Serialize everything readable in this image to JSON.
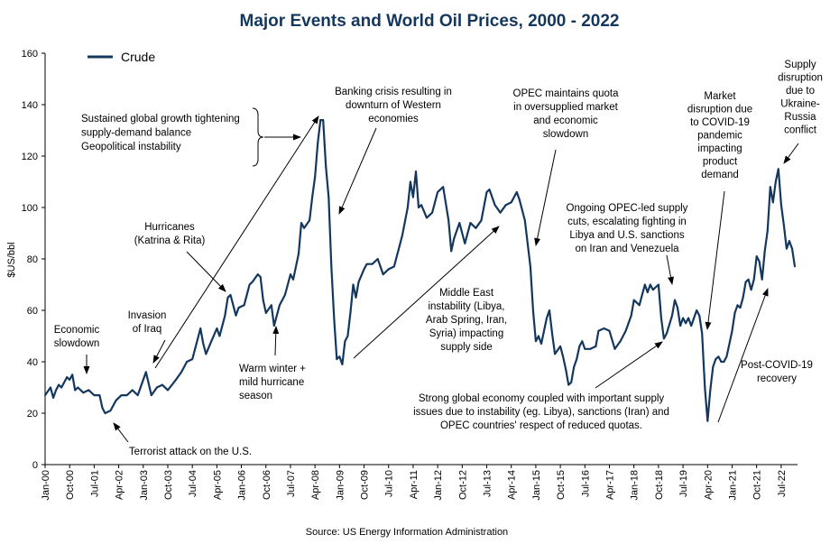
{
  "chart_data": {
    "type": "line",
    "title": "Major Events and World Oil Prices, 2000 - 2022",
    "ylabel": "$US/bbl",
    "xlabel": "",
    "ylim": [
      0,
      160
    ],
    "yticks": [
      "0",
      "20",
      "40",
      "60",
      "80",
      "100",
      "120",
      "140",
      "160"
    ],
    "grid": false,
    "legend_position": "top-left",
    "series_color": "#14375e",
    "source": "Source: US Energy Information Administration",
    "xtick_labels": [
      "Jan-00",
      "Oct-00",
      "Jul-01",
      "Apr-02",
      "Jan-03",
      "Oct-03",
      "Jul-04",
      "Apr-05",
      "Jan-06",
      "Oct-06",
      "Jul-07",
      "Apr-08",
      "Jan-09",
      "Oct-09",
      "Jul-10",
      "Apr-11",
      "Jan-12",
      "Oct-12",
      "Jul-13",
      "Apr-14",
      "Jan-15",
      "Oct-15",
      "Jul-16",
      "Apr-17",
      "Jan-18",
      "Oct-18",
      "Jul-19",
      "Apr-20",
      "Jan-21",
      "Oct-21",
      "Jul-22"
    ],
    "series": [
      {
        "name": "Crude",
        "points": [
          [
            "2000-01",
            27
          ],
          [
            "2000-03",
            30
          ],
          [
            "2000-04",
            26
          ],
          [
            "2000-05",
            29
          ],
          [
            "2000-06",
            31
          ],
          [
            "2000-07",
            30
          ],
          [
            "2000-09",
            34
          ],
          [
            "2000-10",
            33
          ],
          [
            "2000-11",
            35
          ],
          [
            "2000-12",
            29
          ],
          [
            "2001-01",
            30
          ],
          [
            "2001-03",
            28
          ],
          [
            "2001-05",
            29
          ],
          [
            "2001-07",
            27
          ],
          [
            "2001-09",
            27
          ],
          [
            "2001-10",
            22
          ],
          [
            "2001-11",
            20
          ],
          [
            "2002-01",
            21
          ],
          [
            "2002-03",
            25
          ],
          [
            "2002-05",
            27
          ],
          [
            "2002-07",
            27
          ],
          [
            "2002-09",
            29
          ],
          [
            "2002-11",
            27
          ],
          [
            "2003-01",
            33
          ],
          [
            "2003-02",
            36
          ],
          [
            "2003-04",
            27
          ],
          [
            "2003-06",
            30
          ],
          [
            "2003-08",
            31
          ],
          [
            "2003-10",
            29
          ],
          [
            "2004-01",
            33
          ],
          [
            "2004-03",
            36
          ],
          [
            "2004-05",
            40
          ],
          [
            "2004-07",
            41
          ],
          [
            "2004-08",
            45
          ],
          [
            "2004-10",
            53
          ],
          [
            "2004-11",
            47
          ],
          [
            "2004-12",
            43
          ],
          [
            "2005-02",
            48
          ],
          [
            "2005-04",
            53
          ],
          [
            "2005-05",
            50
          ],
          [
            "2005-07",
            58
          ],
          [
            "2005-08",
            65
          ],
          [
            "2005-09",
            66
          ],
          [
            "2005-11",
            58
          ],
          [
            "2005-12",
            61
          ],
          [
            "2006-02",
            62
          ],
          [
            "2006-04",
            70
          ],
          [
            "2006-05",
            71
          ],
          [
            "2006-07",
            74
          ],
          [
            "2006-08",
            73
          ],
          [
            "2006-09",
            64
          ],
          [
            "2006-10",
            59
          ],
          [
            "2006-12",
            62
          ],
          [
            "2007-01",
            54
          ],
          [
            "2007-03",
            62
          ],
          [
            "2007-05",
            66
          ],
          [
            "2007-07",
            74
          ],
          [
            "2007-08",
            72
          ],
          [
            "2007-10",
            82
          ],
          [
            "2007-11",
            94
          ],
          [
            "2007-12",
            92
          ],
          [
            "2008-02",
            95
          ],
          [
            "2008-03",
            104
          ],
          [
            "2008-04",
            112
          ],
          [
            "2008-05",
            125
          ],
          [
            "2008-06",
            134
          ],
          [
            "2008-07",
            134
          ],
          [
            "2008-08",
            116
          ],
          [
            "2008-09",
            104
          ],
          [
            "2008-10",
            77
          ],
          [
            "2008-11",
            57
          ],
          [
            "2008-12",
            41
          ],
          [
            "2009-01",
            42
          ],
          [
            "2009-02",
            39
          ],
          [
            "2009-03",
            48
          ],
          [
            "2009-04",
            50
          ],
          [
            "2009-05",
            59
          ],
          [
            "2009-06",
            70
          ],
          [
            "2009-07",
            65
          ],
          [
            "2009-08",
            71
          ],
          [
            "2009-10",
            76
          ],
          [
            "2009-11",
            78
          ],
          [
            "2010-01",
            78
          ],
          [
            "2010-03",
            80
          ],
          [
            "2010-05",
            74
          ],
          [
            "2010-07",
            76
          ],
          [
            "2010-09",
            77
          ],
          [
            "2010-11",
            85
          ],
          [
            "2010-12",
            89
          ],
          [
            "2011-02",
            100
          ],
          [
            "2011-03",
            110
          ],
          [
            "2011-04",
            104
          ],
          [
            "2011-05",
            114
          ],
          [
            "2011-06",
            100
          ],
          [
            "2011-07",
            101
          ],
          [
            "2011-09",
            96
          ],
          [
            "2011-11",
            98
          ],
          [
            "2012-01",
            106
          ],
          [
            "2012-03",
            108
          ],
          [
            "2012-05",
            95
          ],
          [
            "2012-06",
            83
          ],
          [
            "2012-07",
            88
          ],
          [
            "2012-09",
            94
          ],
          [
            "2012-11",
            86
          ],
          [
            "2013-01",
            94
          ],
          [
            "2013-03",
            92
          ],
          [
            "2013-05",
            95
          ],
          [
            "2013-07",
            106
          ],
          [
            "2013-08",
            107
          ],
          [
            "2013-10",
            101
          ],
          [
            "2013-12",
            98
          ],
          [
            "2014-02",
            101
          ],
          [
            "2014-04",
            102
          ],
          [
            "2014-06",
            106
          ],
          [
            "2014-07",
            103
          ],
          [
            "2014-09",
            95
          ],
          [
            "2014-11",
            77
          ],
          [
            "2014-12",
            60
          ],
          [
            "2015-01",
            48
          ],
          [
            "2015-02",
            50
          ],
          [
            "2015-03",
            47
          ],
          [
            "2015-05",
            57
          ],
          [
            "2015-06",
            60
          ],
          [
            "2015-07",
            51
          ],
          [
            "2015-08",
            43
          ],
          [
            "2015-10",
            46
          ],
          [
            "2015-11",
            42
          ],
          [
            "2015-12",
            37
          ],
          [
            "2016-01",
            31
          ],
          [
            "2016-02",
            32
          ],
          [
            "2016-03",
            38
          ],
          [
            "2016-04",
            41
          ],
          [
            "2016-05",
            46
          ],
          [
            "2016-06",
            48
          ],
          [
            "2016-07",
            45
          ],
          [
            "2016-09",
            45
          ],
          [
            "2016-11",
            46
          ],
          [
            "2016-12",
            52
          ],
          [
            "2017-02",
            53
          ],
          [
            "2017-04",
            52
          ],
          [
            "2017-06",
            45
          ],
          [
            "2017-08",
            48
          ],
          [
            "2017-10",
            52
          ],
          [
            "2017-12",
            58
          ],
          [
            "2018-01",
            64
          ],
          [
            "2018-03",
            62
          ],
          [
            "2018-05",
            70
          ],
          [
            "2018-06",
            67
          ],
          [
            "2018-07",
            70
          ],
          [
            "2018-08",
            68
          ],
          [
            "2018-10",
            70
          ],
          [
            "2018-11",
            57
          ],
          [
            "2018-12",
            49
          ],
          [
            "2019-01",
            51
          ],
          [
            "2019-03",
            58
          ],
          [
            "2019-04",
            64
          ],
          [
            "2019-05",
            61
          ],
          [
            "2019-06",
            54
          ],
          [
            "2019-07",
            57
          ],
          [
            "2019-08",
            55
          ],
          [
            "2019-09",
            57
          ],
          [
            "2019-10",
            54
          ],
          [
            "2019-11",
            57
          ],
          [
            "2019-12",
            60
          ],
          [
            "2020-01",
            58
          ],
          [
            "2020-02",
            51
          ],
          [
            "2020-03",
            30
          ],
          [
            "2020-04",
            17
          ],
          [
            "2020-05",
            29
          ],
          [
            "2020-06",
            38
          ],
          [
            "2020-07",
            41
          ],
          [
            "2020-08",
            42
          ],
          [
            "2020-09",
            40
          ],
          [
            "2020-10",
            40
          ],
          [
            "2020-11",
            42
          ],
          [
            "2020-12",
            47
          ],
          [
            "2021-01",
            52
          ],
          [
            "2021-02",
            59
          ],
          [
            "2021-03",
            62
          ],
          [
            "2021-04",
            61
          ],
          [
            "2021-05",
            65
          ],
          [
            "2021-06",
            71
          ],
          [
            "2021-07",
            72
          ],
          [
            "2021-08",
            68
          ],
          [
            "2021-09",
            72
          ],
          [
            "2021-10",
            81
          ],
          [
            "2021-11",
            79
          ],
          [
            "2021-12",
            72
          ],
          [
            "2022-01",
            83
          ],
          [
            "2022-02",
            91
          ],
          [
            "2022-03",
            108
          ],
          [
            "2022-04",
            102
          ],
          [
            "2022-05",
            110
          ],
          [
            "2022-06",
            115
          ],
          [
            "2022-07",
            101
          ],
          [
            "2022-08",
            93
          ],
          [
            "2022-09",
            84
          ],
          [
            "2022-10",
            87
          ],
          [
            "2022-11",
            84
          ],
          [
            "2022-12",
            77
          ]
        ]
      }
    ],
    "annotations": [
      {
        "id": "economic-slowdown",
        "lines": [
          "Economic",
          "slowdown"
        ]
      },
      {
        "id": "terrorist-attack",
        "lines": [
          "Terrorist attack on the U.S."
        ]
      },
      {
        "id": "invasion-iraq",
        "lines": [
          "Invasion",
          "of Iraq"
        ]
      },
      {
        "id": "hurricanes",
        "lines": [
          "Hurricanes",
          "(Katrina & Rita)"
        ]
      },
      {
        "id": "global-growth",
        "lines": [
          "Sustained global growth tightening",
          "supply-demand balance",
          "Geopolitical instability"
        ]
      },
      {
        "id": "warm-winter",
        "lines": [
          "Warm winter +",
          "mild hurricane",
          "season"
        ]
      },
      {
        "id": "banking-crisis",
        "lines": [
          "Banking crisis resulting in",
          "downturn of Western",
          "economies"
        ]
      },
      {
        "id": "middle-east",
        "lines": [
          "Middle East",
          "instability (Libya,",
          "Arab Spring, Iran,",
          "Syria) impacting",
          "supply side"
        ]
      },
      {
        "id": "opec-quota",
        "lines": [
          "OPEC maintains quota",
          "in oversupplied market",
          "and economic",
          "slowdown"
        ]
      },
      {
        "id": "strong-economy",
        "lines": [
          "Strong global economy coupled with important supply",
          "issues due to instability (eg. Libya), sanctions (Iran) and",
          "OPEC countries' respect of reduced quotas."
        ]
      },
      {
        "id": "opec-cuts",
        "lines": [
          "Ongoing OPEC-led supply",
          "cuts, escalating fighting in",
          "Libya and U.S. sanctions",
          "on Iran and Venezuela"
        ]
      },
      {
        "id": "covid",
        "lines": [
          "Market",
          "disruption due",
          "to COVID-19",
          "pandemic",
          "impacting",
          "product",
          "demand"
        ]
      },
      {
        "id": "post-covid",
        "lines": [
          "Post-COVID-19",
          "recovery"
        ]
      },
      {
        "id": "ukraine",
        "lines": [
          "Supply",
          "disruption",
          "due to",
          "Ukraine-",
          "Russia",
          "conflict"
        ]
      }
    ]
  }
}
